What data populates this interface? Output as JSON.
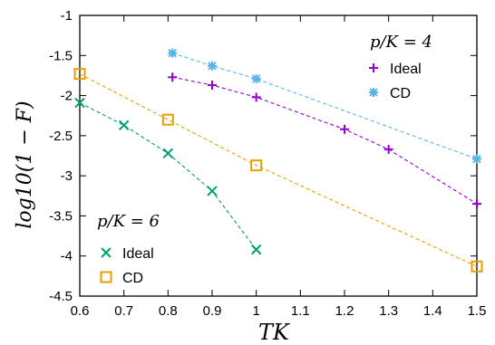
{
  "chart_data": {
    "type": "line",
    "xlabel": "TK",
    "ylabel": "log10(1 − F)",
    "xlim": [
      0.6,
      1.5
    ],
    "ylim": [
      -4.5,
      -1
    ],
    "xticks": [
      "0.6",
      "0.7",
      "0.8",
      "0.9",
      "1",
      "1.1",
      "1.2",
      "1.3",
      "1.4",
      "1.5"
    ],
    "yticks": [
      "-1",
      "-1.5",
      "-2",
      "-2.5",
      "-3",
      "-3.5",
      "-4",
      "-4.5"
    ],
    "grid": false,
    "legends": [
      {
        "title": "p/K = 4",
        "placement": "top-right",
        "entries": [
          "Ideal",
          "CD"
        ]
      },
      {
        "title": "p/K = 6",
        "placement": "bottom-left",
        "entries": [
          "Ideal",
          "CD"
        ]
      }
    ],
    "series": [
      {
        "name": "Ideal",
        "group": "p/K = 4",
        "marker": "plus",
        "color": "#9400d3",
        "x": [
          0.81,
          0.9,
          1.0,
          1.2,
          1.3,
          1.5
        ],
        "y": [
          -1.77,
          -1.87,
          -2.02,
          -2.42,
          -2.67,
          -3.35
        ]
      },
      {
        "name": "CD",
        "group": "p/K = 4",
        "marker": "star",
        "color": "#56b4e9",
        "x": [
          0.81,
          0.9,
          1.0,
          1.5
        ],
        "y": [
          -1.47,
          -1.63,
          -1.79,
          -2.79
        ]
      },
      {
        "name": "Ideal",
        "group": "p/K = 6",
        "marker": "x",
        "color": "#009e73",
        "x": [
          0.6,
          0.7,
          0.8,
          0.9,
          1.0
        ],
        "y": [
          -2.09,
          -2.37,
          -2.72,
          -3.19,
          -3.92
        ]
      },
      {
        "name": "CD",
        "group": "p/K = 6",
        "marker": "square",
        "color": "#e69f00",
        "x": [
          0.6,
          0.8,
          1.0,
          1.5
        ],
        "y": [
          -1.73,
          -2.3,
          -2.87,
          -4.13
        ]
      }
    ]
  }
}
